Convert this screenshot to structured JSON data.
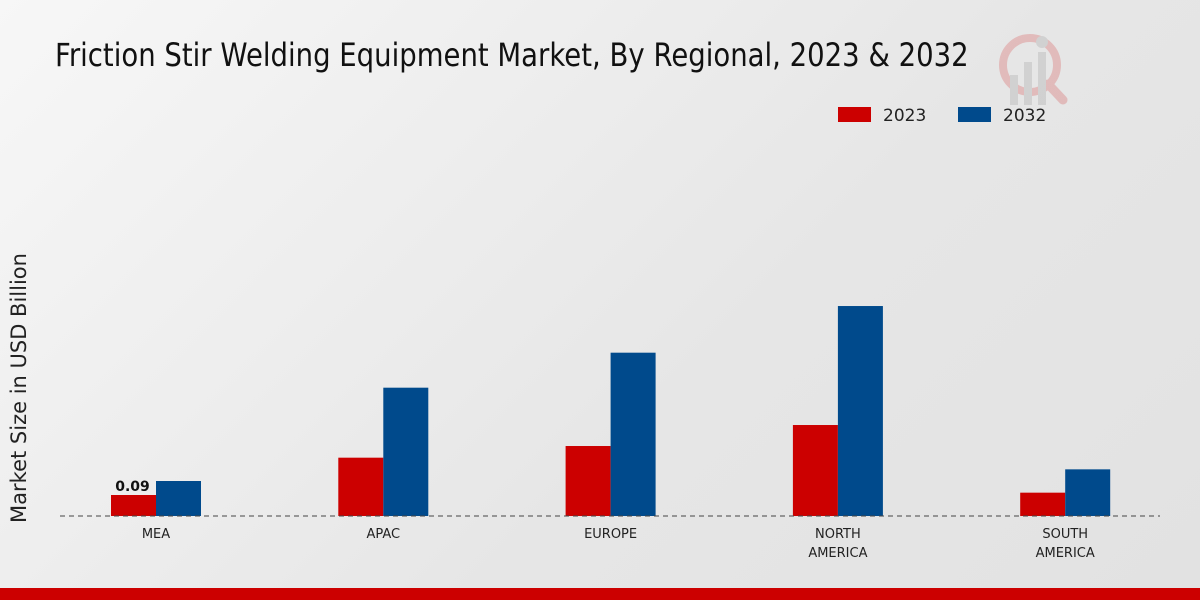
{
  "chart_data": {
    "type": "bar",
    "title": "Friction Stir Welding Equipment Market, By Regional, 2023 & 2032",
    "xlabel": "",
    "ylabel": "Market Size in USD Billion",
    "categories": [
      "MEA",
      "APAC",
      "EUROPE",
      "NORTH\nAMERICA",
      "SOUTH\nAMERICA"
    ],
    "series": [
      {
        "name": "2023",
        "color": "#cc0000",
        "values": [
          0.09,
          0.25,
          0.3,
          0.39,
          0.1
        ]
      },
      {
        "name": "2032",
        "color": "#004a8c",
        "values": [
          0.15,
          0.55,
          0.7,
          0.9,
          0.2
        ]
      }
    ],
    "data_labels": [
      {
        "series": 0,
        "index": 0,
        "text": "0.09"
      }
    ],
    "ylim": [
      0,
      1.2
    ],
    "grid": false,
    "legend": "top-right"
  }
}
